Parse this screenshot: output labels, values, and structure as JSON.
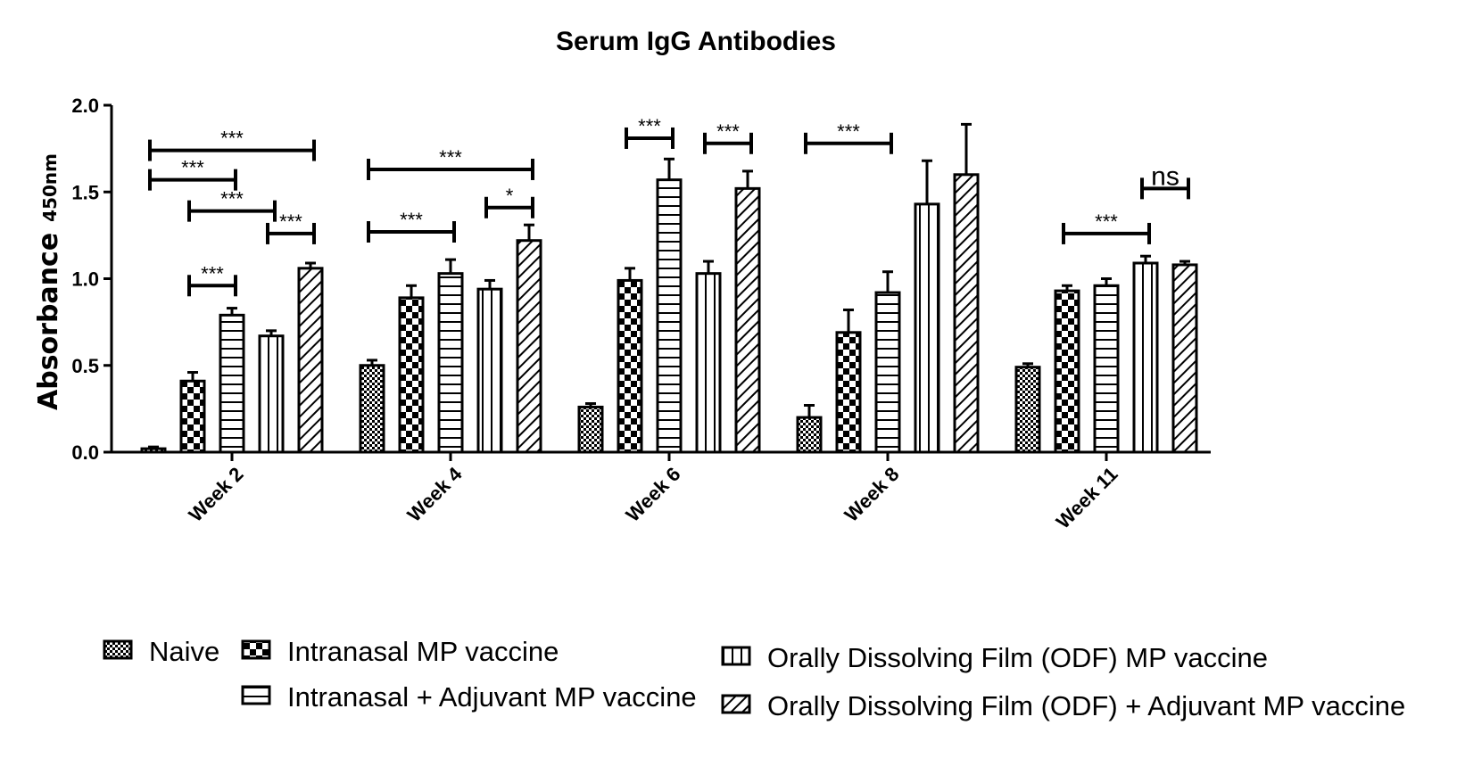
{
  "chart_data": {
    "type": "bar",
    "title": "Serum IgG Antibodies",
    "ylabel": "Absorbance",
    "ylabel_subscript": "450nm",
    "xlabel": "",
    "ylim": [
      0,
      2.0
    ],
    "yticks": [
      "0.0",
      "0.5",
      "1.0",
      "1.5",
      "2.0"
    ],
    "categories": [
      "Week 2",
      "Week 4",
      "Week 6",
      "Week 8",
      "Week 11"
    ],
    "legend_position": "bottom",
    "series": [
      {
        "name": "Naive",
        "pattern": "checker-fine",
        "values": [
          0.02,
          0.5,
          0.26,
          0.2,
          0.49
        ],
        "errors": [
          0.01,
          0.03,
          0.02,
          0.07,
          0.02
        ]
      },
      {
        "name": "Intranasal MP vaccine",
        "pattern": "checker-coarse",
        "values": [
          0.41,
          0.89,
          0.99,
          0.69,
          0.93
        ],
        "errors": [
          0.05,
          0.07,
          0.07,
          0.13,
          0.03
        ]
      },
      {
        "name": "Intranasal + Adjuvant MP vaccine",
        "pattern": "horizontal",
        "values": [
          0.79,
          1.03,
          1.57,
          0.92,
          0.96
        ],
        "errors": [
          0.04,
          0.08,
          0.12,
          0.12,
          0.04
        ]
      },
      {
        "name": "Orally Dissolving Film (ODF) MP vaccine",
        "pattern": "vertical",
        "values": [
          0.67,
          0.94,
          1.03,
          1.43,
          1.09
        ],
        "errors": [
          0.03,
          0.05,
          0.07,
          0.25,
          0.04
        ]
      },
      {
        "name": "Orally Dissolving Film (ODF) + Adjuvant MP vaccine",
        "pattern": "diagonal",
        "values": [
          1.06,
          1.22,
          1.52,
          1.6,
          1.08
        ],
        "errors": [
          0.03,
          0.09,
          0.1,
          0.29,
          0.02
        ]
      }
    ],
    "significance": [
      {
        "category": 0,
        "from": 0,
        "to": 4,
        "level": 1.74,
        "label": "***"
      },
      {
        "category": 0,
        "from": 0,
        "to": 2,
        "level": 1.57,
        "label": "***"
      },
      {
        "category": 0,
        "from": 1,
        "to": 3,
        "level": 1.39,
        "label": "***"
      },
      {
        "category": 0,
        "from": 3,
        "to": 4,
        "level": 1.26,
        "label": "***"
      },
      {
        "category": 0,
        "from": 1,
        "to": 2,
        "level": 0.96,
        "label": "***"
      },
      {
        "category": 1,
        "from": 0,
        "to": 4,
        "level": 1.63,
        "label": "***"
      },
      {
        "category": 1,
        "from": 3,
        "to": 4,
        "level": 1.41,
        "label": "*"
      },
      {
        "category": 1,
        "from": 0,
        "to": 2,
        "level": 1.27,
        "label": "***"
      },
      {
        "category": 2,
        "from": 1,
        "to": 2,
        "level": 1.81,
        "label": "***"
      },
      {
        "category": 2,
        "from": 3,
        "to": 4,
        "level": 1.78,
        "label": "***"
      },
      {
        "category": 3,
        "from": 0,
        "to": 2,
        "level": 1.78,
        "label": "***"
      },
      {
        "category": 4,
        "from": 1,
        "to": 3,
        "level": 1.26,
        "label": "***"
      },
      {
        "category": 4,
        "from": 3,
        "to": 4,
        "level": 1.52,
        "label": "ns"
      }
    ]
  }
}
